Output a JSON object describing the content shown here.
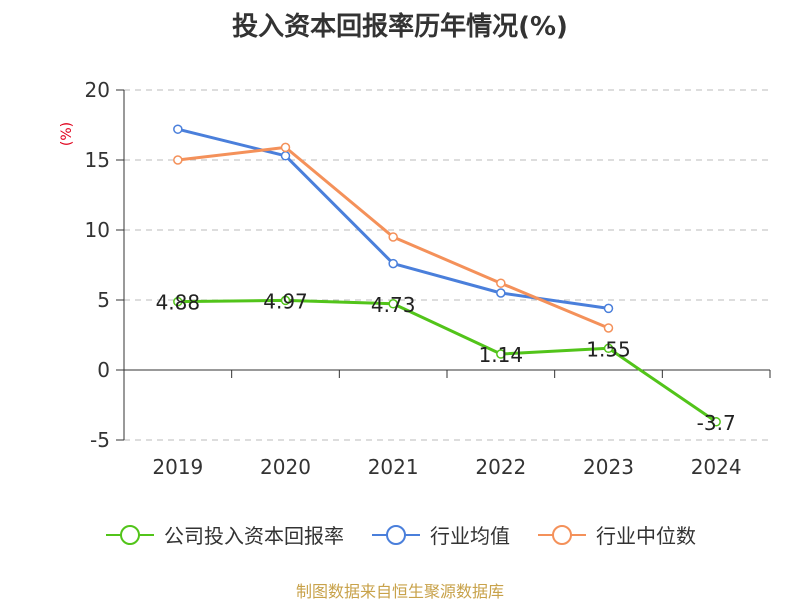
{
  "chart_data": {
    "type": "line",
    "title": "投入资本回报率历年情况(%)",
    "ylabel": "(%)",
    "xlabel": "",
    "categories": [
      "2019",
      "2020",
      "2021",
      "2022",
      "2023",
      "2024"
    ],
    "ylim": [
      -5,
      20
    ],
    "yticks": [
      20,
      15,
      10,
      5,
      0,
      -5
    ],
    "grid": true,
    "legend_position": "bottom",
    "series": [
      {
        "name": "公司投入资本回报率",
        "color": "#52c41a",
        "values": [
          4.88,
          4.97,
          4.73,
          1.14,
          1.55,
          -3.7
        ],
        "labels": [
          "4.88",
          "4.97",
          "4.73",
          "1.14",
          "1.55",
          "-3.7"
        ]
      },
      {
        "name": "行业均值",
        "color": "#4a7fdb",
        "values": [
          17.2,
          15.3,
          7.6,
          5.5,
          4.4,
          null
        ]
      },
      {
        "name": "行业中位数",
        "color": "#f4915a",
        "values": [
          15.0,
          15.9,
          9.5,
          6.2,
          3.0,
          null
        ]
      }
    ]
  },
  "source": "制图数据来自恒生聚源数据库"
}
